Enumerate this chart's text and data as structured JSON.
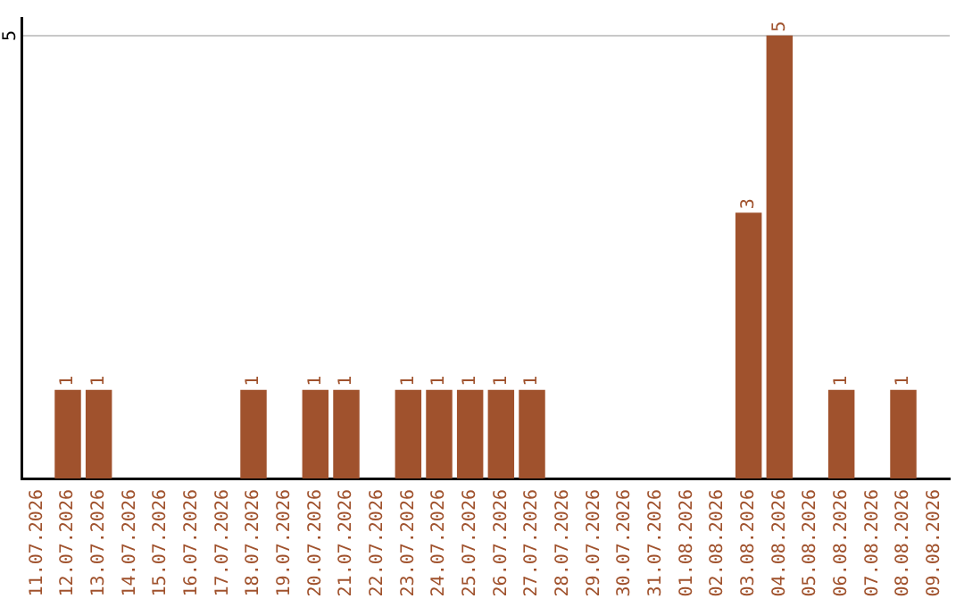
{
  "chart_data": {
    "type": "bar",
    "categories": [
      "11.07.2026",
      "12.07.2026",
      "13.07.2026",
      "14.07.2026",
      "15.07.2026",
      "16.07.2026",
      "17.07.2026",
      "18.07.2026",
      "19.07.2026",
      "20.07.2026",
      "21.07.2026",
      "22.07.2026",
      "23.07.2026",
      "24.07.2026",
      "25.07.2026",
      "26.07.2026",
      "27.07.2026",
      "28.07.2026",
      "29.07.2026",
      "30.07.2026",
      "31.07.2026",
      "01.08.2026",
      "02.08.2026",
      "03.08.2026",
      "04.08.2026",
      "05.08.2026",
      "06.08.2026",
      "07.08.2026",
      "08.08.2026",
      "09.08.2026"
    ],
    "values": [
      0,
      1,
      1,
      0,
      0,
      0,
      0,
      1,
      0,
      1,
      1,
      0,
      1,
      1,
      1,
      1,
      1,
      0,
      0,
      0,
      0,
      0,
      0,
      3,
      5,
      0,
      1,
      0,
      1,
      0
    ],
    "value_labels": [
      null,
      "1",
      "1",
      null,
      null,
      null,
      null,
      "1",
      null,
      "1",
      "1",
      null,
      "1",
      "1",
      "1",
      "1",
      "1",
      null,
      null,
      null,
      null,
      null,
      null,
      "3",
      "5",
      null,
      "1",
      null,
      "1",
      null
    ],
    "color": "#a0522d",
    "ylim": [
      0,
      5.2
    ],
    "yticks": [
      5
    ],
    "grid": "y",
    "legend": false
  }
}
